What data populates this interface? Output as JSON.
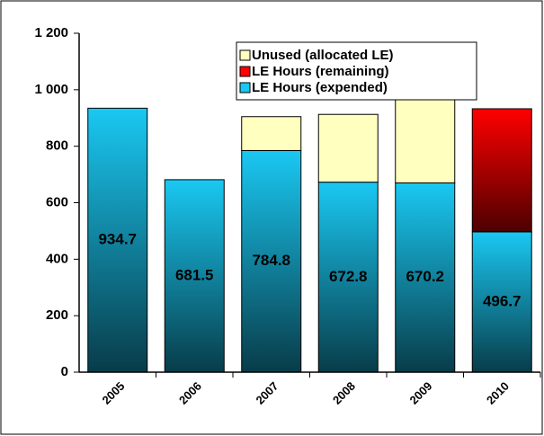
{
  "chart_data": {
    "type": "bar",
    "stacked": true,
    "categories": [
      "2005",
      "2006",
      "2007",
      "2008",
      "2009",
      "2010"
    ],
    "series": [
      {
        "name": "Unused (allocated LE)",
        "color": "#ffffc0",
        "values": [
          null,
          null,
          120,
          240,
          330,
          null
        ]
      },
      {
        "name": "LE Hours (remaining)",
        "color": "#ff0000",
        "values": [
          null,
          null,
          null,
          null,
          null,
          436
        ]
      },
      {
        "name": "LE Hours (expended)",
        "color": "#1ac8f2",
        "values": [
          934.7,
          681.5,
          784.8,
          672.8,
          670.2,
          496.7
        ],
        "show_value_labels": true
      }
    ],
    "ylim": [
      0,
      1200
    ],
    "yticks": [
      0,
      200,
      400,
      600,
      800,
      {
        "value": 1000,
        "label": "1 000"
      },
      {
        "value": 1200,
        "label": "1 200"
      }
    ],
    "grid": false
  }
}
